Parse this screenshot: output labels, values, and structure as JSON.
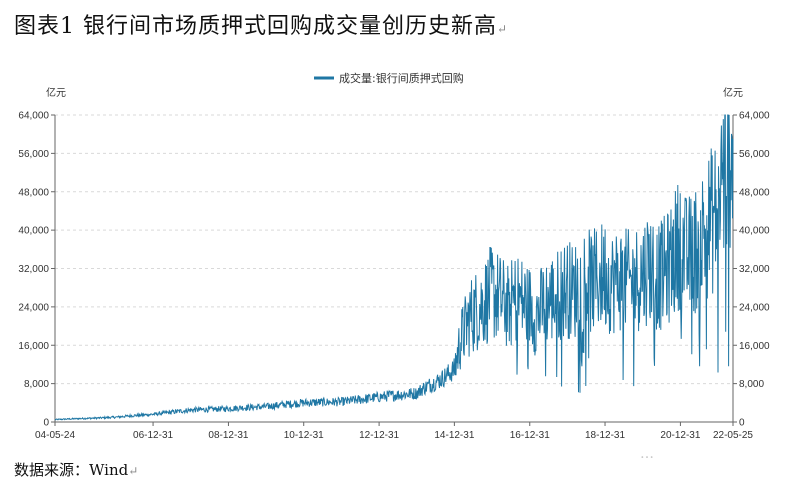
{
  "figure": {
    "title": "图表1 银行间市场质押式回购成交量创历史新高",
    "source": "数据来源：Wind"
  },
  "watermark": "…",
  "chart_data": {
    "type": "line",
    "ylabel_left": "亿元",
    "ylabel_right": "亿元",
    "ylim": [
      0,
      64000
    ],
    "yticks": [
      0,
      8000,
      16000,
      24000,
      32000,
      40000,
      48000,
      56000,
      64000
    ],
    "ytick_labels": [
      "0",
      "8,000",
      "16,000",
      "24,000",
      "32,000",
      "40,000",
      "48,000",
      "56,000",
      "64,000"
    ],
    "xlim": [
      "2004-05-24",
      "2022-05-25"
    ],
    "xticks": [
      "2004-05-24",
      "2006-12-31",
      "2008-12-31",
      "2010-12-31",
      "2012-12-31",
      "2014-12-31",
      "2016-12-31",
      "2018-12-31",
      "2020-12-31",
      "2022-05-25"
    ],
    "xtick_labels": [
      "04-05-24",
      "06-12-31",
      "08-12-31",
      "10-12-31",
      "12-12-31",
      "14-12-31",
      "16-12-31",
      "18-12-31",
      "20-12-31",
      "22-05-25"
    ],
    "grid": true,
    "legend_position": "top",
    "color": "#1f77a4",
    "series": [
      {
        "name": "成交量:银行间质押式回购",
        "x": [
          "2004-05-24",
          "2004-09-01",
          "2005-01-01",
          "2005-06-01",
          "2006-01-01",
          "2006-06-01",
          "2006-12-31",
          "2007-06-01",
          "2007-12-31",
          "2008-06-01",
          "2008-12-31",
          "2009-06-01",
          "2009-12-31",
          "2010-06-01",
          "2010-12-31",
          "2011-06-01",
          "2011-12-31",
          "2012-06-01",
          "2012-12-31",
          "2013-06-01",
          "2013-12-31",
          "2014-03-01",
          "2014-06-01",
          "2014-09-01",
          "2014-12-31",
          "2015-03-01",
          "2015-06-01",
          "2015-09-01",
          "2015-12-31",
          "2016-03-01",
          "2016-06-01",
          "2016-09-01",
          "2016-12-31",
          "2017-03-01",
          "2017-06-01",
          "2017-09-01",
          "2017-12-31",
          "2018-03-01",
          "2018-06-01",
          "2018-09-01",
          "2018-12-31",
          "2019-03-01",
          "2019-06-01",
          "2019-09-01",
          "2019-12-31",
          "2020-03-01",
          "2020-06-01",
          "2020-09-01",
          "2020-12-31",
          "2021-03-01",
          "2021-06-01",
          "2021-09-01",
          "2021-12-31",
          "2022-02-01",
          "2022-04-01",
          "2022-05-25"
        ],
        "values": [
          500,
          600,
          700,
          800,
          1000,
          1300,
          1600,
          2000,
          2500,
          2600,
          2800,
          3000,
          3200,
          3600,
          4000,
          4100,
          4200,
          4600,
          5200,
          5600,
          6000,
          7000,
          8000,
          9000,
          11000,
          17000,
          22000,
          24000,
          27000,
          26000,
          24000,
          26000,
          24000,
          22000,
          25000,
          26000,
          28000,
          27000,
          30000,
          29000,
          31000,
          29000,
          30000,
          29000,
          31000,
          33000,
          30000,
          32000,
          38000,
          34000,
          36000,
          40000,
          44000,
          50000,
          55000,
          60000
        ]
      }
    ]
  }
}
